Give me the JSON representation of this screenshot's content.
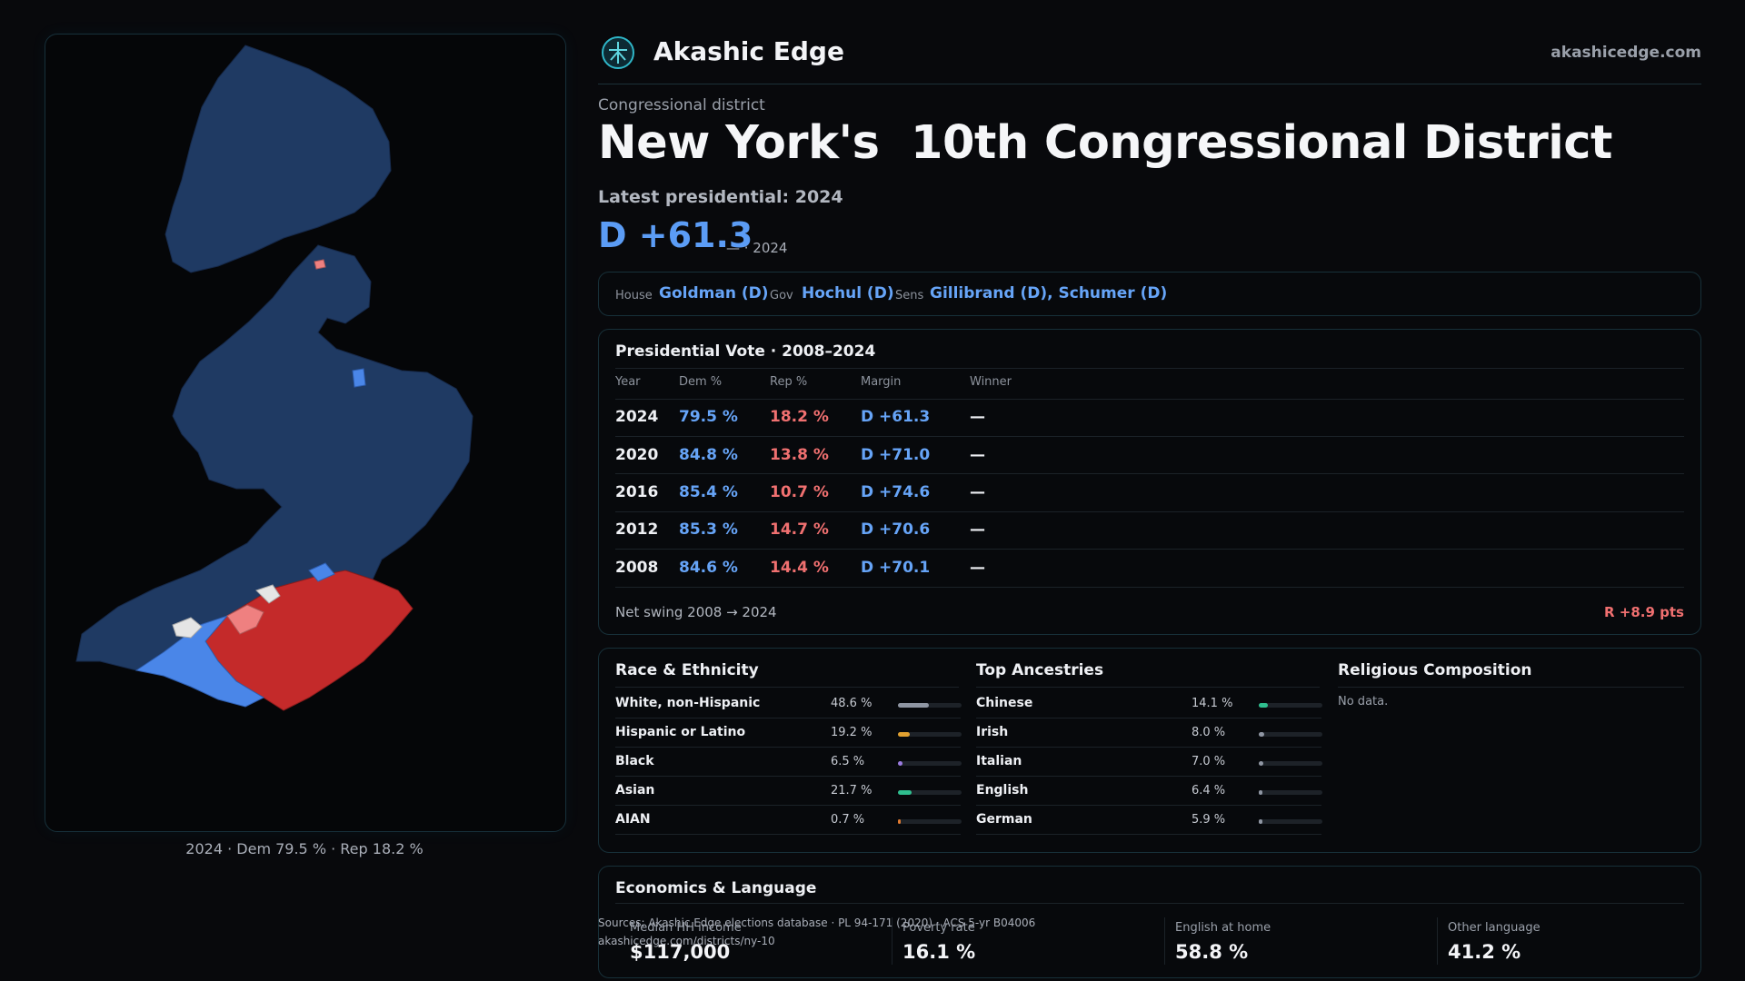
{
  "map": {
    "caption": "2024 · Dem 79.5 % · Rep 18.2 %",
    "colors": {
      "dem_base": "#1f3a63",
      "dem_light": "#4a86e8",
      "rep_strong": "#c42a2a",
      "rep_light": "#ef8080",
      "even": "#e5e5e5"
    }
  },
  "header": {
    "brand": "Akashic Edge",
    "domain": "akashicedge.com",
    "logo_icon": "akashic-logo-icon"
  },
  "district": {
    "eyebrow": "Congressional district",
    "title": "New York's  10th Congressional District",
    "latest_label": "Latest presidential: 2024",
    "margin": "D +61.3",
    "margin_sub": "— · 2024"
  },
  "reps": {
    "house_label": "House",
    "house": "Goldman (D)",
    "gov_label": "Gov",
    "gov": "Hochul (D)",
    "sens_label": "Sens",
    "sens": "Gillibrand (D), Schumer (D)"
  },
  "presidential": {
    "title": "Presidential Vote · 2008–2024",
    "headers": {
      "year": "Year",
      "dem": "Dem %",
      "rep": "Rep %",
      "margin": "Margin",
      "winner": "Winner"
    },
    "rows": [
      {
        "year": "2024",
        "dem": "79.5 %",
        "rep": "18.2 %",
        "margin": "D +61.3",
        "winner": "—"
      },
      {
        "year": "2020",
        "dem": "84.8 %",
        "rep": "13.8 %",
        "margin": "D +71.0",
        "winner": "—"
      },
      {
        "year": "2016",
        "dem": "85.4 %",
        "rep": "10.7 %",
        "margin": "D +74.6",
        "winner": "—"
      },
      {
        "year": "2012",
        "dem": "85.3 %",
        "rep": "14.7 %",
        "margin": "D +70.6",
        "winner": "—"
      },
      {
        "year": "2008",
        "dem": "84.6 %",
        "rep": "14.4 %",
        "margin": "D +70.1",
        "winner": "—"
      }
    ],
    "swing_label": "Net swing 2008 → 2024",
    "swing_value": "R +8.9 pts"
  },
  "race": {
    "title": "Race & Ethnicity",
    "rows": [
      {
        "label": "White, non-Hispanic",
        "pct": "48.6 %",
        "value": 48.6,
        "color": "#8f96a3"
      },
      {
        "label": "Hispanic or Latino",
        "pct": "19.2 %",
        "value": 19.2,
        "color": "#e0a030"
      },
      {
        "label": "Black",
        "pct": "6.5 %",
        "value": 6.5,
        "color": "#9b7be0"
      },
      {
        "label": "Asian",
        "pct": "21.7 %",
        "value": 21.7,
        "color": "#2fbf8f"
      },
      {
        "label": "AIAN",
        "pct": "0.7 %",
        "value": 0.7,
        "color": "#e07a30"
      }
    ]
  },
  "ancestry": {
    "title": "Top Ancestries",
    "rows": [
      {
        "label": "Chinese",
        "pct": "14.1 %",
        "value": 14.1,
        "color": "#2fbf8f"
      },
      {
        "label": "Irish",
        "pct": "8.0 %",
        "value": 8.0,
        "color": "#8f96a3"
      },
      {
        "label": "Italian",
        "pct": "7.0 %",
        "value": 7.0,
        "color": "#8f96a3"
      },
      {
        "label": "English",
        "pct": "6.4 %",
        "value": 6.4,
        "color": "#8f96a3"
      },
      {
        "label": "German",
        "pct": "5.9 %",
        "value": 5.9,
        "color": "#8f96a3"
      }
    ]
  },
  "religion": {
    "title": "Religious Composition",
    "empty": "No data."
  },
  "economics": {
    "title": "Economics & Language",
    "stats": [
      {
        "label": "Median HH income",
        "value": "$117,000"
      },
      {
        "label": "Poverty rate",
        "value": "16.1 %"
      },
      {
        "label": "English at home",
        "value": "58.8 %"
      },
      {
        "label": "Other language",
        "value": "41.2 %"
      }
    ]
  },
  "sources": {
    "line1": "Sources: Akashic Edge elections database · PL 94-171 (2020) · ACS 5-yr B04006",
    "line2": "akashicedge.com/districts/ny-10"
  }
}
